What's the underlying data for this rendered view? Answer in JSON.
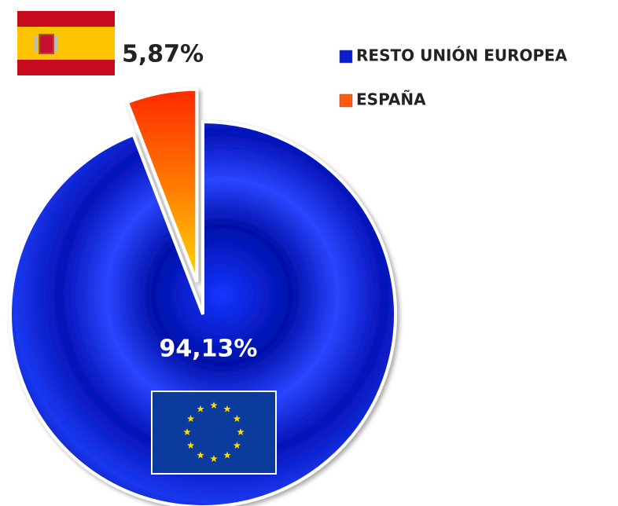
{
  "chart_data": {
    "type": "pie",
    "categories": [
      "RESTO UNIÓN EUROPEA",
      "ESPAÑA"
    ],
    "values": [
      94.13,
      5.87
    ],
    "value_labels": [
      "94,13%",
      "5,87%"
    ],
    "colors": [
      "#0a1fd0",
      "#ff5a10"
    ],
    "legend": "top-right"
  }
}
